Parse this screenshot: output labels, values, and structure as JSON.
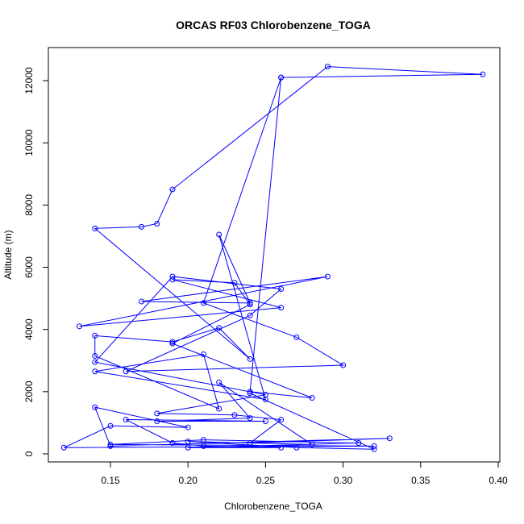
{
  "chart_data": {
    "type": "line",
    "title": "ORCAS RF03 Chlorobenzene_TOGA",
    "xlabel": "Chlorobenzene_TOGA",
    "ylabel": "Altitude (m)",
    "xlim": [
      0.12,
      0.39
    ],
    "ylim": [
      0,
      12500
    ],
    "x_ticks": [
      0.15,
      0.2,
      0.25,
      0.3,
      0.35,
      0.4
    ],
    "x_tick_labels": [
      "0.15",
      "0.20",
      "0.25",
      "0.30",
      "0.35",
      "0.40"
    ],
    "y_ticks": [
      0,
      2000,
      4000,
      6000,
      8000,
      10000,
      12000
    ],
    "y_tick_labels": [
      "0",
      "2000",
      "4000",
      "6000",
      "8000",
      "10000",
      "12000"
    ],
    "grid": false,
    "series_color": "#0000ff",
    "points": [
      {
        "x": 0.26,
        "y": 12100
      },
      {
        "x": 0.24,
        "y": 2000
      },
      {
        "x": 0.28,
        "y": 1800
      },
      {
        "x": 0.19,
        "y": 3550
      },
      {
        "x": 0.24,
        "y": 4800
      },
      {
        "x": 0.23,
        "y": 5500
      },
      {
        "x": 0.19,
        "y": 5600
      },
      {
        "x": 0.26,
        "y": 4700
      },
      {
        "x": 0.13,
        "y": 4100
      },
      {
        "x": 0.29,
        "y": 5700
      },
      {
        "x": 0.17,
        "y": 4900
      },
      {
        "x": 0.24,
        "y": 4850
      },
      {
        "x": 0.22,
        "y": 7050
      },
      {
        "x": 0.25,
        "y": 1750
      },
      {
        "x": 0.14,
        "y": 2650
      },
      {
        "x": 0.21,
        "y": 3200
      },
      {
        "x": 0.22,
        "y": 1450
      },
      {
        "x": 0.14,
        "y": 3150
      },
      {
        "x": 0.14,
        "y": 3800
      },
      {
        "x": 0.19,
        "y": 3600
      },
      {
        "x": 0.22,
        "y": 4050
      },
      {
        "x": 0.24,
        "y": 3050
      },
      {
        "x": 0.14,
        "y": 7250
      },
      {
        "x": 0.17,
        "y": 7300
      },
      {
        "x": 0.18,
        "y": 7400
      },
      {
        "x": 0.19,
        "y": 8500
      },
      {
        "x": 0.29,
        "y": 12450
      },
      {
        "x": 0.39,
        "y": 12200
      },
      {
        "x": 0.26,
        "y": 12100
      }
    ],
    "points_continued": [
      {
        "x": 0.21,
        "y": 4850
      },
      {
        "x": 0.27,
        "y": 3750
      },
      {
        "x": 0.3,
        "y": 2850
      },
      {
        "x": 0.16,
        "y": 2650
      },
      {
        "x": 0.24,
        "y": 4450
      },
      {
        "x": 0.26,
        "y": 5300
      },
      {
        "x": 0.19,
        "y": 5700
      },
      {
        "x": 0.14,
        "y": 2950
      },
      {
        "x": 0.25,
        "y": 1900
      },
      {
        "x": 0.18,
        "y": 1300
      },
      {
        "x": 0.23,
        "y": 1250
      },
      {
        "x": 0.26,
        "y": 1100
      },
      {
        "x": 0.24,
        "y": 350
      },
      {
        "x": 0.33,
        "y": 500
      },
      {
        "x": 0.15,
        "y": 250
      },
      {
        "x": 0.14,
        "y": 1500
      },
      {
        "x": 0.2,
        "y": 850
      },
      {
        "x": 0.15,
        "y": 900
      },
      {
        "x": 0.12,
        "y": 200
      },
      {
        "x": 0.32,
        "y": 250
      },
      {
        "x": 0.15,
        "y": 300
      },
      {
        "x": 0.21,
        "y": 450
      },
      {
        "x": 0.31,
        "y": 350
      },
      {
        "x": 0.2,
        "y": 200
      },
      {
        "x": 0.26,
        "y": 200
      },
      {
        "x": 0.21,
        "y": 250
      },
      {
        "x": 0.19,
        "y": 350
      },
      {
        "x": 0.16,
        "y": 1100
      },
      {
        "x": 0.25,
        "y": 1050
      },
      {
        "x": 0.18,
        "y": 1050
      },
      {
        "x": 0.24,
        "y": 1150
      },
      {
        "x": 0.22,
        "y": 2300
      },
      {
        "x": 0.28,
        "y": 300
      },
      {
        "x": 0.2,
        "y": 400
      },
      {
        "x": 0.27,
        "y": 200
      },
      {
        "x": 0.32,
        "y": 150
      },
      {
        "x": 0.24,
        "y": 1950
      }
    ]
  }
}
